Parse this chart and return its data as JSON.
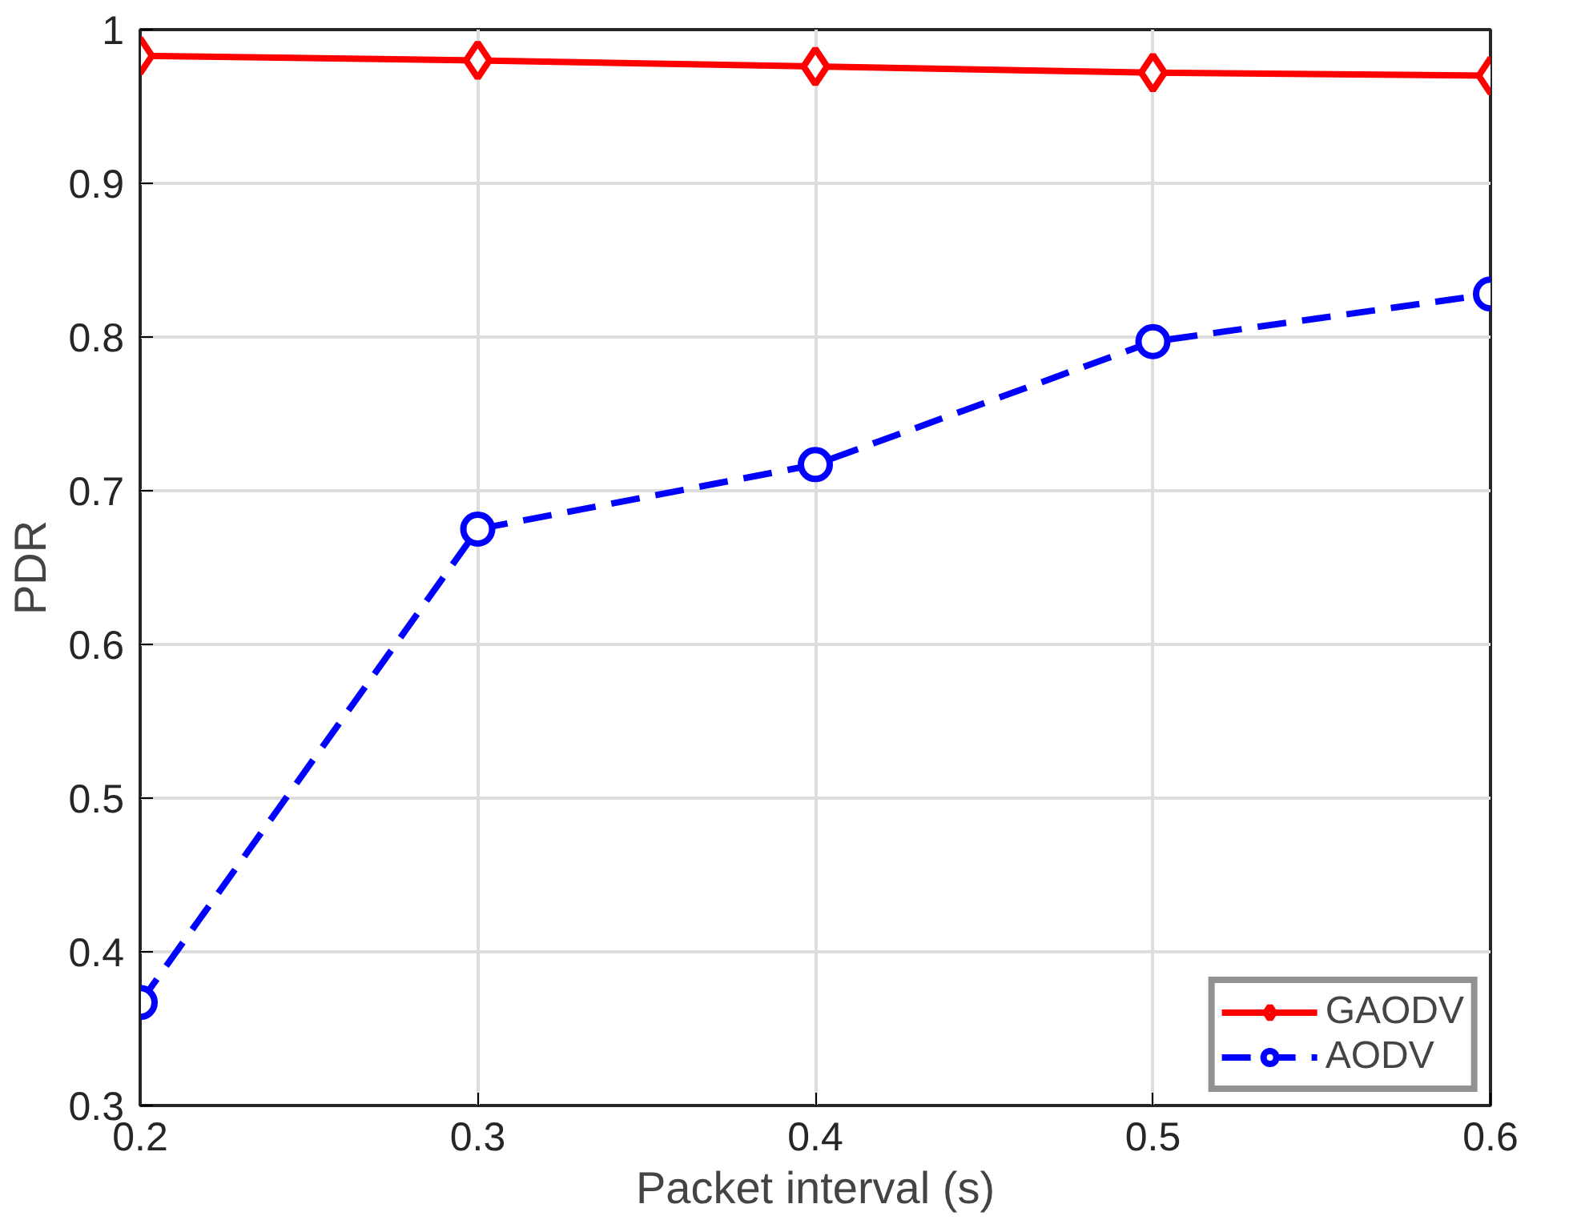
{
  "chart_data": {
    "type": "line",
    "xlabel": "Packet interval (s)",
    "ylabel": "PDR",
    "x": [
      0.2,
      0.3,
      0.4,
      0.5,
      0.6
    ],
    "series": [
      {
        "name": "GAODV",
        "color": "#ff0000",
        "marker": "diamond",
        "line_style": "solid",
        "values": [
          0.983,
          0.98,
          0.976,
          0.972,
          0.97
        ]
      },
      {
        "name": "AODV",
        "color": "#0000ff",
        "marker": "circle",
        "line_style": "dashed",
        "values": [
          0.367,
          0.675,
          0.717,
          0.797,
          0.828
        ]
      }
    ],
    "xlim": [
      0.2,
      0.6
    ],
    "xticks": [
      0.2,
      0.3,
      0.4,
      0.5,
      0.6
    ],
    "ylim": [
      0.3,
      1
    ],
    "yticks": [
      0.3,
      0.4,
      0.5,
      0.6,
      0.7,
      0.8,
      0.9,
      {
        "value": 1,
        "label": "1"
      }
    ],
    "grid": true,
    "legend": "bottom right"
  }
}
